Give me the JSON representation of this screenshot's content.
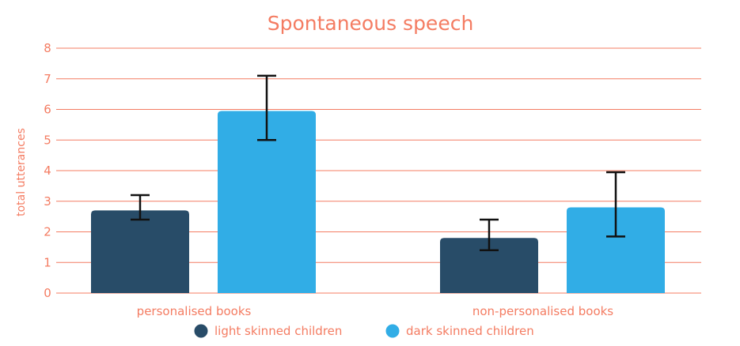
{
  "chart_data": {
    "type": "bar",
    "title": "Spontaneous speech",
    "ylabel": "total utterances",
    "xlabel": "",
    "ylim": [
      0,
      8
    ],
    "yticks": [
      0,
      1,
      2,
      3,
      4,
      5,
      6,
      7,
      8
    ],
    "grid": true,
    "legend_position": "bottom",
    "categories": [
      "personalised books",
      "non-personalised books"
    ],
    "series": [
      {
        "name": "light skinned children",
        "color": "#284c68",
        "values": [
          2.7,
          1.8
        ],
        "error_low": [
          2.4,
          1.4
        ],
        "error_high": [
          3.2,
          2.4
        ]
      },
      {
        "name": "dark skinned children",
        "color": "#31ade6",
        "values": [
          5.95,
          2.8
        ],
        "error_low": [
          5.0,
          1.85
        ],
        "error_high": [
          7.1,
          3.95
        ]
      }
    ],
    "colors": {
      "text": "#f47c62",
      "grid": "#f47c62",
      "error_bar": "#111111"
    }
  }
}
